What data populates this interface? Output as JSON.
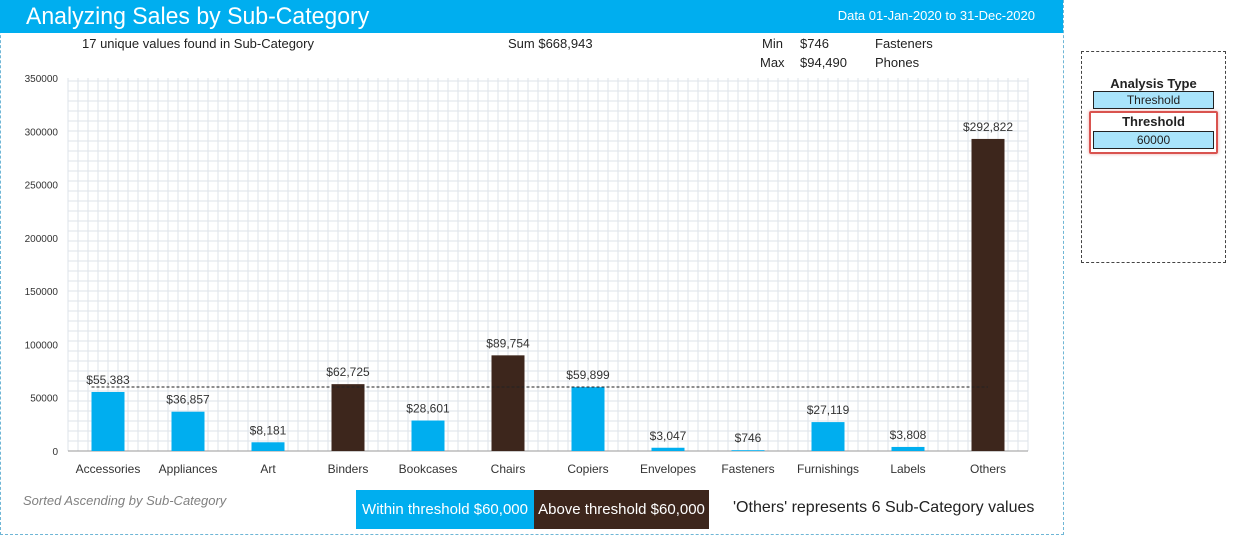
{
  "header": {
    "title": "Analyzing Sales by Sub-Category",
    "date_range": "Data 01-Jan-2020 to 31-Dec-2020"
  },
  "stats": {
    "unique_text": "17 unique values found in Sub-Category",
    "sum_text": "Sum $668,943",
    "min_label": "Min",
    "min_value": "$746",
    "min_name": "Fasteners",
    "max_label": "Max",
    "max_value": "$94,490",
    "max_name": "Phones"
  },
  "chart_data": {
    "type": "bar",
    "categories": [
      "Accessories",
      "Appliances",
      "Art",
      "Binders",
      "Bookcases",
      "Chairs",
      "Copiers",
      "Envelopes",
      "Fasteners",
      "Furnishings",
      "Labels",
      "Others"
    ],
    "values": [
      55383,
      36857,
      8181,
      62725,
      28601,
      89754,
      59899,
      3047,
      746,
      27119,
      3808,
      292822
    ],
    "data_labels": [
      "$55,383",
      "$36,857",
      "$8,181",
      "$62,725",
      "$28,601",
      "$89,754",
      "$59,899",
      "$3,047",
      "$746",
      "$27,119",
      "$3,808",
      "$292,822"
    ],
    "above_threshold": [
      false,
      false,
      false,
      true,
      false,
      true,
      false,
      false,
      false,
      false,
      false,
      true
    ],
    "threshold": 60000,
    "ylim": [
      0,
      350000
    ],
    "yticks": [
      0,
      50000,
      100000,
      150000,
      200000,
      250000,
      300000,
      350000
    ],
    "title": "",
    "xlabel": "",
    "ylabel": "",
    "grid": true,
    "colors": {
      "within": "#00aeef",
      "above": "#3d261c",
      "grid": "#dde3ea",
      "threshold_line": "#222222"
    }
  },
  "footer": {
    "sort_note": "Sorted Ascending by Sub-Category",
    "legend_within": "Within threshold $60,000",
    "legend_above": "Above threshold $60,000",
    "others_note": "'Others' represents 6 Sub-Category values"
  },
  "controls": {
    "analysis_type_label": "Analysis Type",
    "analysis_type_value": "Threshold",
    "threshold_label": "Threshold",
    "threshold_value": "60000"
  }
}
